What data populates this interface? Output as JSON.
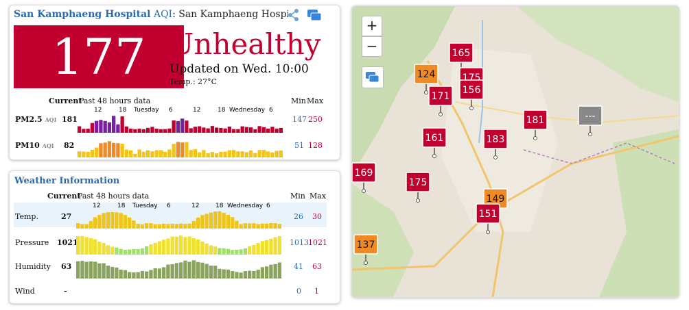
{
  "aqi_card": {
    "station": "San Kamphaeng Hospital",
    "aqi_label": "AQI",
    "location_label": ": San Kamphaeng Hospital I",
    "aqi_value": "177",
    "status": "Unhealthy",
    "updated": "Updated on Wed. 10:00",
    "temp": "Temp.: 27°C",
    "current_header": "Current",
    "past_header": "Past 48 hours data",
    "min_header": "Min",
    "max_header": "Max",
    "axis": {
      "t1": "12",
      "t2": "18",
      "t3": "Tuesday",
      "t4": "6",
      "t5": "12",
      "t6": "18",
      "t7": "Wednesday",
      "t8": "6"
    },
    "pm25": {
      "label": "PM2.5",
      "unit": "AQI",
      "current": "181",
      "min": "147",
      "max": "250"
    },
    "pm10": {
      "label": "PM10",
      "unit": "AQI",
      "current": "82",
      "min": "51",
      "max": "128"
    }
  },
  "weather_card": {
    "title": "Weather Information",
    "current_header": "Current",
    "past_header": "Past 48 hours data",
    "min_header": "Min",
    "max_header": "Max",
    "axis": {
      "t1": "12",
      "t2": "18",
      "t3": "Tuesday",
      "t4": "6",
      "t5": "12",
      "t6": "18",
      "t7": "Wednesday",
      "t8": "6"
    },
    "rows": [
      {
        "label": "Temp.",
        "current": "27",
        "min": "26",
        "max": "30"
      },
      {
        "label": "Pressure",
        "current": "1021",
        "min": "1013",
        "max": "1021"
      },
      {
        "label": "Humidity",
        "current": "63",
        "min": "41",
        "max": "63"
      },
      {
        "label": "Wind",
        "current": "-",
        "min": "0",
        "max": "1"
      }
    ]
  },
  "map": {
    "zoom_in": "+",
    "zoom_out": "−",
    "markers": [
      {
        "value": "165",
        "color": "#c1002f"
      },
      {
        "value": "124",
        "color": "#f08a24"
      },
      {
        "value": "175",
        "color": "#c1002f"
      },
      {
        "value": "171",
        "color": "#c1002f"
      },
      {
        "value": "156",
        "color": "#c1002f"
      },
      {
        "value": "181",
        "color": "#c1002f"
      },
      {
        "value": "161",
        "color": "#c1002f"
      },
      {
        "value": "183",
        "color": "#c1002f"
      },
      {
        "value": "169",
        "color": "#c1002f"
      },
      {
        "value": "175",
        "color": "#c1002f"
      },
      {
        "value": "149",
        "color": "#f08a24"
      },
      {
        "value": "151",
        "color": "#c1002f"
      },
      {
        "value": "137",
        "color": "#f08a24"
      },
      {
        "value": "---",
        "color": "#888888"
      }
    ]
  },
  "colors": {
    "accent": "#2a6ab0",
    "unhealthy": "#c1002f",
    "moderate": "#f0c419",
    "sensitive": "#f08a24",
    "very_unhealthy": "#7a1fa0"
  }
}
